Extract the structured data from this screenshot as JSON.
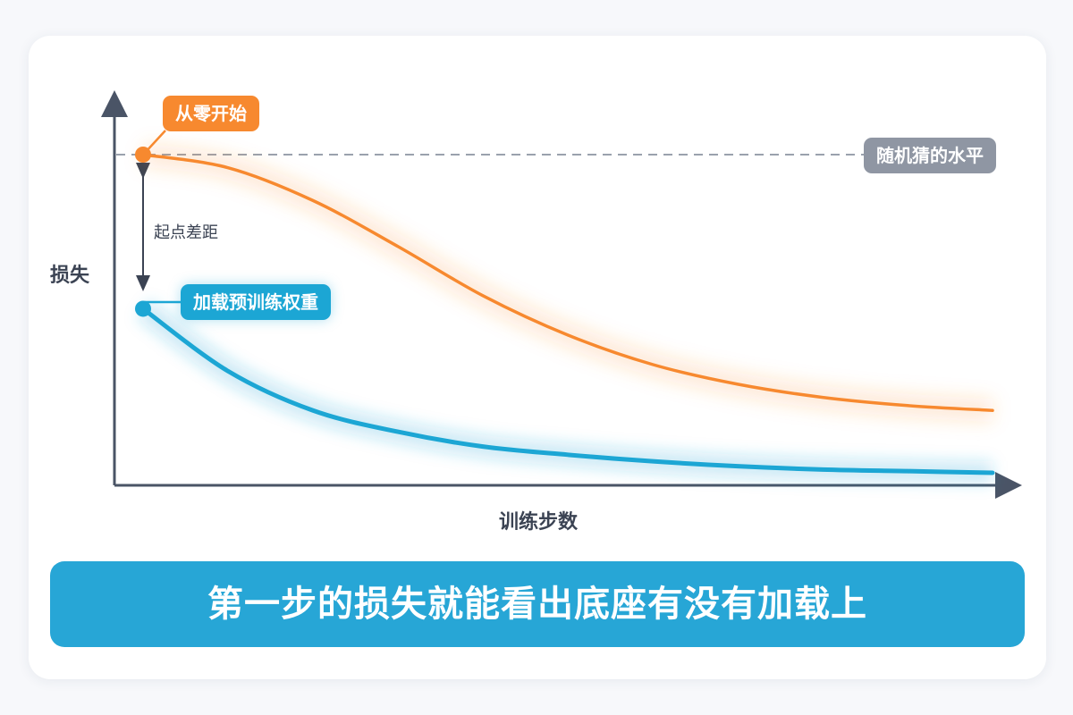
{
  "chart_data": {
    "type": "line",
    "xlabel": "训练步数",
    "ylabel": "损失",
    "series": [
      {
        "name": "从零开始",
        "color": "#f7892f",
        "values": [
          1.0,
          0.96,
          0.86,
          0.72,
          0.57,
          0.45,
          0.36,
          0.3,
          0.26,
          0.235,
          0.22
        ]
      },
      {
        "name": "加载预训练权重",
        "color": "#1ca6d4",
        "values": [
          0.53,
          0.34,
          0.22,
          0.155,
          0.11,
          0.085,
          0.065,
          0.05,
          0.04,
          0.035,
          0.03
        ]
      }
    ],
    "reference_line": {
      "label": "随机猜的水平",
      "value": 1.0,
      "color": "#8f96a3"
    },
    "annotations": [
      {
        "label": "起点差距"
      }
    ]
  },
  "banner": {
    "text": "第一步的损失就能看出底座有没有加载上"
  }
}
